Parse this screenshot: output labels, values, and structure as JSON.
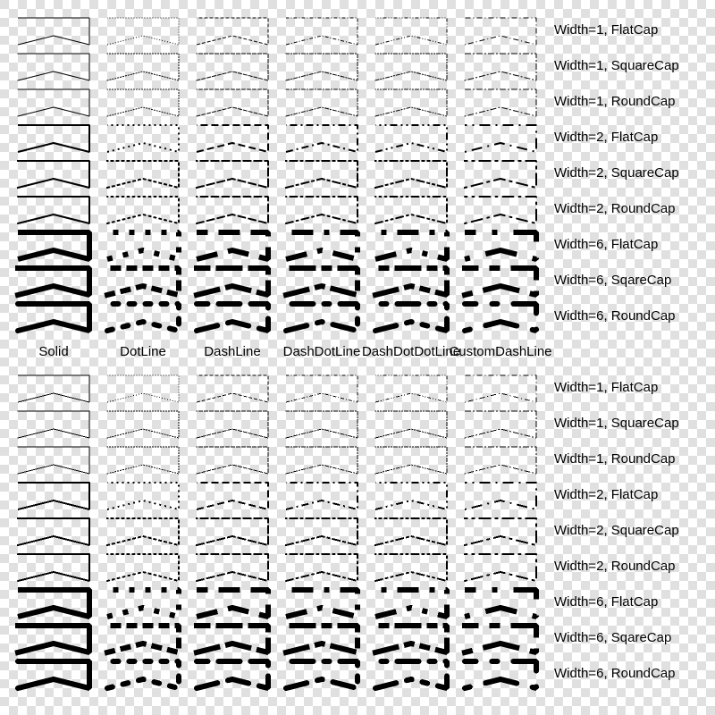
{
  "columns": [
    {
      "label": "Solid",
      "dash": null
    },
    {
      "label": "DotLine",
      "dash": [
        1,
        2
      ]
    },
    {
      "label": "DashLine",
      "dash": [
        4,
        2
      ]
    },
    {
      "label": "DashDotLine",
      "dash": [
        4,
        2,
        1,
        2
      ]
    },
    {
      "label": "DashDotDotLine",
      "dash": [
        4,
        2,
        1,
        2,
        1,
        2
      ]
    },
    {
      "label": "CustomDashLine",
      "dash": [
        1,
        3,
        6,
        3
      ]
    }
  ],
  "rows": [
    {
      "label": "Width=1, FlatCap",
      "width": 1,
      "cap": "butt"
    },
    {
      "label": "Width=1, SquareCap",
      "width": 1,
      "cap": "square"
    },
    {
      "label": "Width=1, RoundCap",
      "width": 1,
      "cap": "round"
    },
    {
      "label": "Width=2, FlatCap",
      "width": 2,
      "cap": "butt"
    },
    {
      "label": "Width=2, SquareCap",
      "width": 2,
      "cap": "square"
    },
    {
      "label": "Width=2, RoundCap",
      "width": 2,
      "cap": "round"
    },
    {
      "label": "Width=6, FlatCap",
      "width": 6,
      "cap": "butt"
    },
    {
      "label": "Width=6, SqareCap",
      "width": 6,
      "cap": "square"
    },
    {
      "label": "Width=6, RoundCap",
      "width": 6,
      "cap": "round"
    }
  ],
  "colors": {
    "stroke": "#000000",
    "checker_light": "#ffffff",
    "checker_dark": "#e0e0e0"
  }
}
